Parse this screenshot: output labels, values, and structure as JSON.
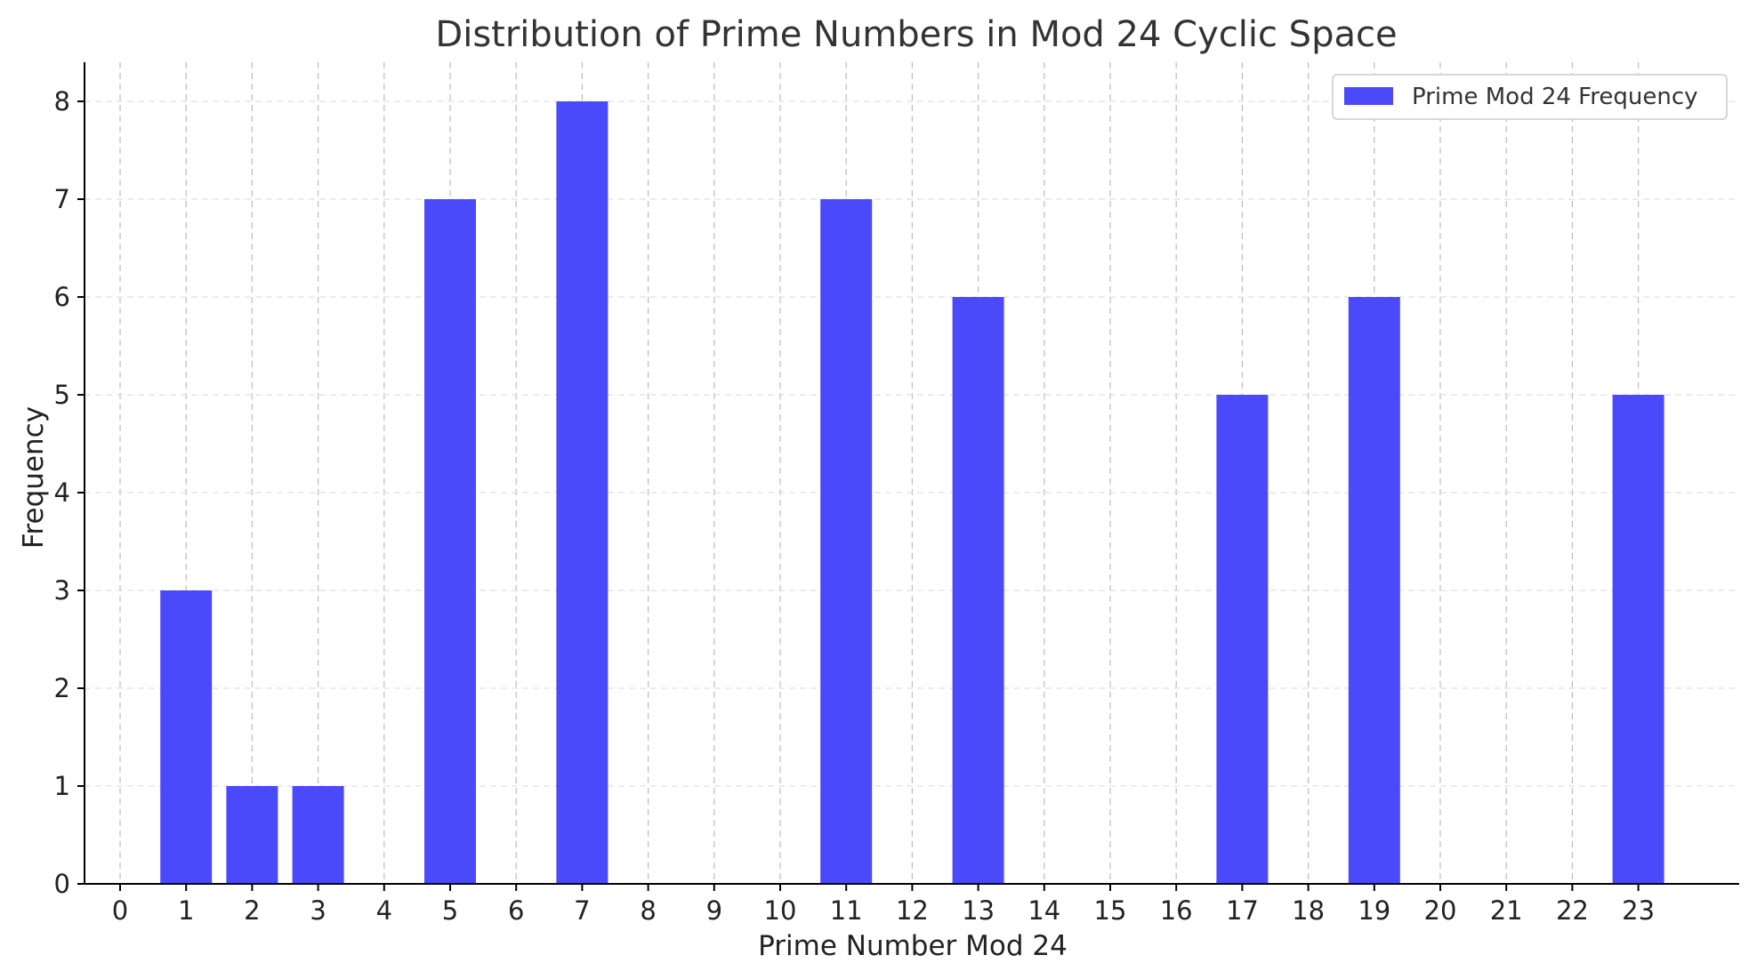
{
  "chart_data": {
    "type": "bar",
    "title": "Distribution of Prime Numbers in Mod 24 Cyclic Space",
    "xlabel": "Prime Number Mod 24",
    "ylabel": "Frequency",
    "categories": [
      "0",
      "1",
      "2",
      "3",
      "4",
      "5",
      "6",
      "7",
      "8",
      "9",
      "10",
      "11",
      "12",
      "13",
      "14",
      "15",
      "16",
      "17",
      "18",
      "19",
      "20",
      "21",
      "22",
      "23"
    ],
    "series": [
      {
        "name": "Prime Mod 24 Frequency",
        "values": [
          0,
          3,
          1,
          1,
          0,
          7,
          0,
          8,
          0,
          0,
          0,
          7,
          0,
          6,
          0,
          0,
          0,
          5,
          0,
          6,
          0,
          0,
          0,
          5
        ],
        "color": "#4a4afa"
      }
    ],
    "ylim": [
      0,
      8.4
    ],
    "yticks": [
      0,
      1,
      2,
      3,
      4,
      5,
      6,
      7,
      8
    ],
    "grid": true,
    "legend_position": "top-right"
  }
}
